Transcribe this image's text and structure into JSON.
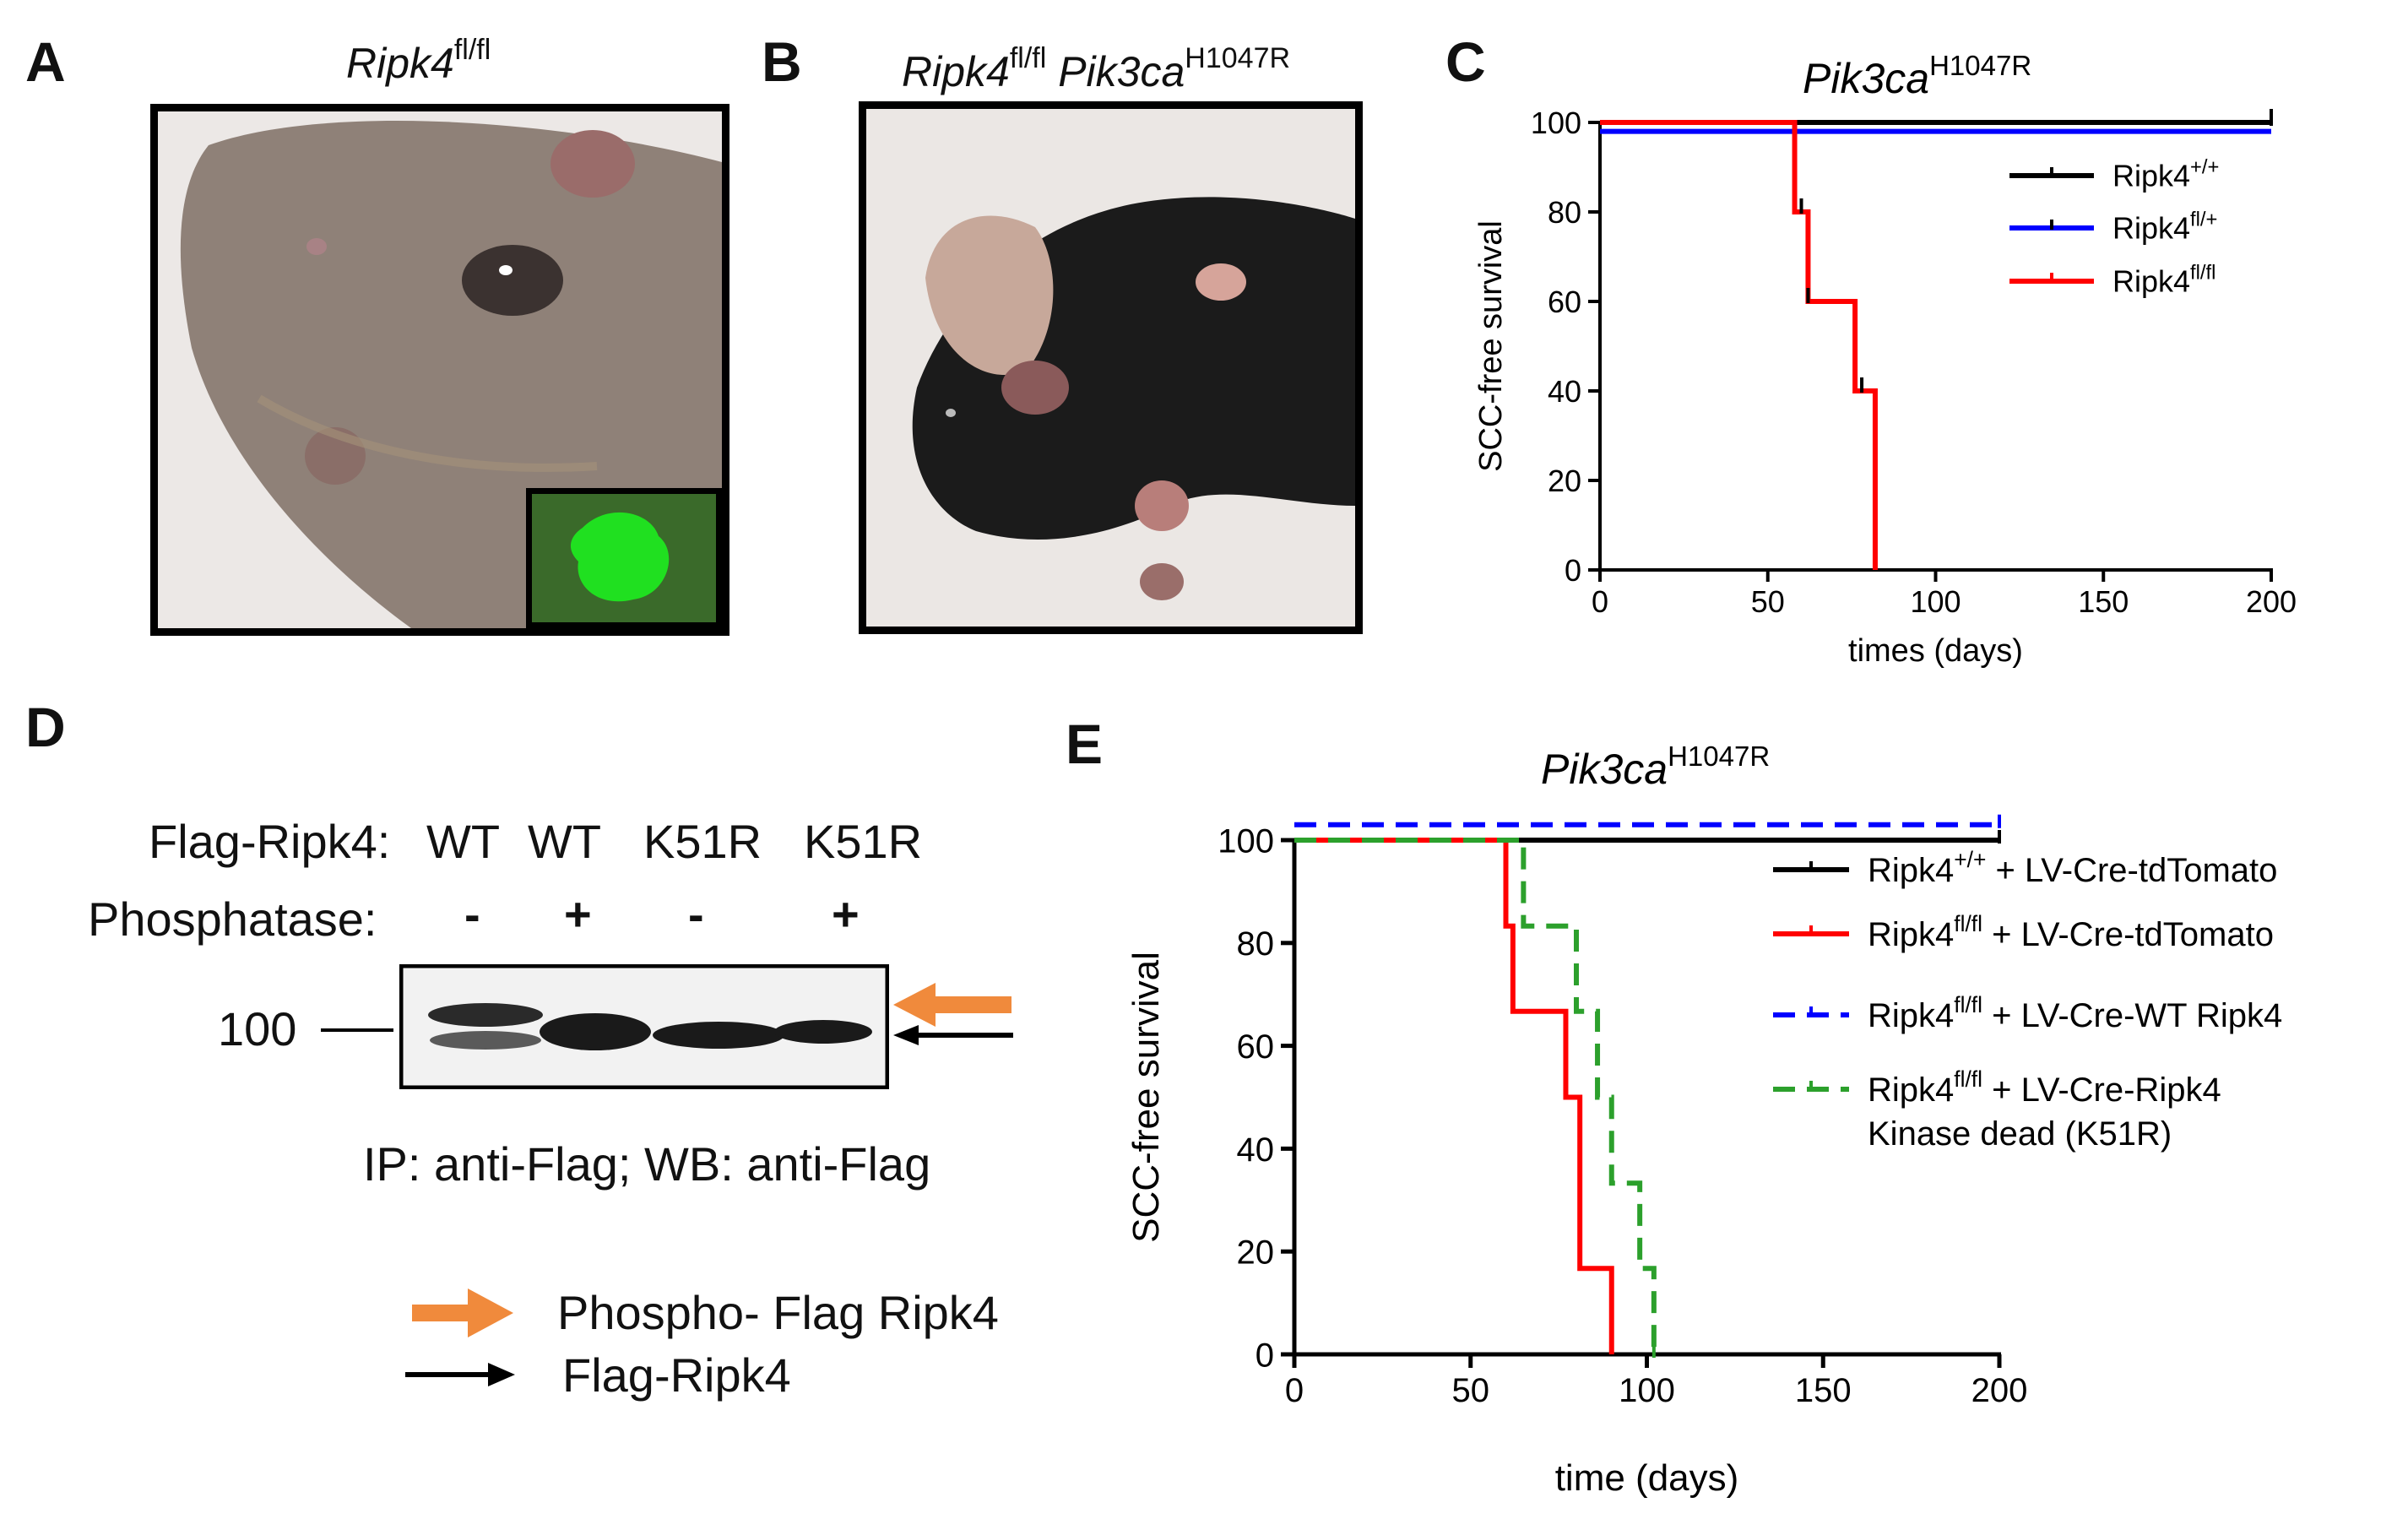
{
  "colors": {
    "black_series": "#000000",
    "blue_series": "#0000ff",
    "red_series": "#ff0000",
    "green_series": "#2ca02c",
    "orange_arrow": "#f08a3c",
    "gfp_green": "#20e020"
  },
  "panelA": {
    "letter": "A",
    "title_gene": "Ripk4",
    "title_sup": "fl/fl"
  },
  "panelB": {
    "letter": "B",
    "title_gene1": "Ripk4",
    "title_sup1": "fl/fl",
    "title_gene2": "Pik3ca",
    "title_sup2": "H1047R"
  },
  "panelD": {
    "letter": "D",
    "flag_label": "Flag-Ripk4:",
    "lanes": [
      "WT",
      "WT",
      "K51R",
      "K51R"
    ],
    "phosphatase_label": "Phosphatase:",
    "phosphatase": [
      "-",
      "+",
      "-",
      "+"
    ],
    "mw_marker": "100",
    "caption": "IP: anti-Flag; WB: anti-Flag",
    "legend_phospho": "Phospho- Flag Ripk4",
    "legend_flag": "Flag-Ripk4"
  },
  "chart_data": [
    {
      "panel": "C",
      "letter": "C",
      "type": "line",
      "step": true,
      "title_gene": "Pik3ca",
      "title_sup": "H1047R",
      "xlabel": "times (days)",
      "ylabel": "SCC-free survival",
      "xlim": [
        0,
        200
      ],
      "ylim": [
        0,
        100
      ],
      "xticks": [
        0,
        50,
        100,
        150,
        200
      ],
      "yticks": [
        0,
        20,
        40,
        60,
        80,
        100
      ],
      "legend_position": "top-right",
      "series": [
        {
          "name": "Ripk4",
          "name_sup": "+/+",
          "color": "#000000",
          "points": [
            [
              0,
              100
            ],
            [
              200,
              100
            ]
          ],
          "censor": [
            [
              200,
              100
            ]
          ]
        },
        {
          "name": "Ripk4",
          "name_sup": "fl/+",
          "color": "#0000ff",
          "points": [
            [
              0,
              98
            ],
            [
              200,
              98
            ]
          ],
          "censor": []
        },
        {
          "name": "Ripk4",
          "name_sup": "fl/fl",
          "color": "#ff0000",
          "points": [
            [
              0,
              100
            ],
            [
              58,
              100
            ],
            [
              58,
              80
            ],
            [
              62,
              80
            ],
            [
              62,
              60
            ],
            [
              76,
              60
            ],
            [
              76,
              40
            ],
            [
              82,
              40
            ],
            [
              82,
              0
            ]
          ],
          "censor": [
            [
              60,
              80
            ],
            [
              62,
              60
            ],
            [
              78,
              40
            ]
          ]
        }
      ]
    },
    {
      "panel": "E",
      "letter": "E",
      "type": "line",
      "step": true,
      "title_gene": "Pik3ca",
      "title_sup": "H1047R",
      "xlabel": "time (days)",
      "ylabel": "SCC-free survival",
      "xlim": [
        0,
        200
      ],
      "ylim": [
        0,
        100
      ],
      "xticks": [
        0,
        50,
        100,
        150,
        200
      ],
      "yticks": [
        0,
        20,
        40,
        60,
        80,
        100
      ],
      "legend_position": "right",
      "series": [
        {
          "name": "Ripk4",
          "name_sup": "+/+",
          "suffix": " + LV-Cre-tdTomato",
          "suffix2": "",
          "color": "#000000",
          "dashed": false,
          "points": [
            [
              0,
              100
            ],
            [
              200,
              100
            ]
          ]
        },
        {
          "name": "Ripk4",
          "name_sup": "fl/fl",
          "suffix": " + LV-Cre-tdTomato",
          "suffix2": "",
          "color": "#ff0000",
          "dashed": false,
          "points": [
            [
              0,
              100
            ],
            [
              60,
              100
            ],
            [
              60,
              83.3
            ],
            [
              62,
              83.3
            ],
            [
              62,
              66.7
            ],
            [
              77,
              66.7
            ],
            [
              77,
              50
            ],
            [
              81,
              50
            ],
            [
              81,
              16.7
            ],
            [
              90,
              16.7
            ],
            [
              90,
              0
            ]
          ]
        },
        {
          "name": "Ripk4",
          "name_sup": "fl/fl",
          "suffix": " + LV-Cre-WT Ripk4",
          "suffix2": "",
          "color": "#0000ff",
          "dashed": true,
          "points": [
            [
              0,
              103
            ],
            [
              200,
              103
            ]
          ]
        },
        {
          "name": "Ripk4",
          "name_sup": "fl/fl",
          "suffix": " + LV-Cre-Ripk4",
          "suffix2": "Kinase dead  (K51R)",
          "color": "#2ca02c",
          "dashed": true,
          "points": [
            [
              0,
              100
            ],
            [
              65,
              100
            ],
            [
              65,
              83.3
            ],
            [
              80,
              83.3
            ],
            [
              80,
              66.7
            ],
            [
              86,
              66.7
            ],
            [
              86,
              50
            ],
            [
              90,
              50
            ],
            [
              90,
              33.3
            ],
            [
              98,
              33.3
            ],
            [
              98,
              16.7
            ],
            [
              102,
              16.7
            ],
            [
              102,
              0
            ]
          ]
        }
      ]
    }
  ]
}
